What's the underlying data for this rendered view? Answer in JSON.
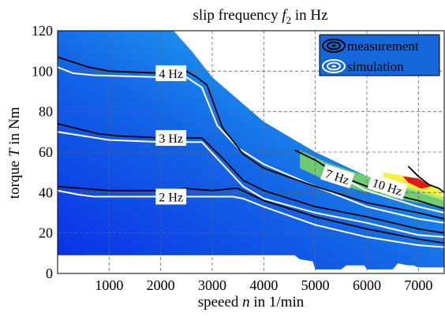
{
  "chart_data": {
    "type": "heatmap",
    "title_prefix": "slip frequency ",
    "title_var": "f",
    "title_sub": "2",
    "title_suffix": " in Hz",
    "xlabel_prefix": "speeed ",
    "xlabel_var": "n",
    "xlabel_suffix": " in 1/min",
    "ylabel_prefix": "torque ",
    "ylabel_var": "T",
    "ylabel_suffix": " in Nm",
    "xlim": [
      0,
      7500
    ],
    "ylim": [
      0,
      120
    ],
    "xticks": [
      1000,
      2000,
      3000,
      4000,
      5000,
      6000,
      7000
    ],
    "yticks": [
      0,
      20,
      40,
      60,
      80,
      100,
      120
    ],
    "grid": true,
    "colors": {
      "low": "#0a2fe6",
      "mid": "#1f9ff0",
      "cyan": "#33d6f0",
      "green": "#8ee64a",
      "yellow": "#f2ef2a",
      "red": "#e21a10",
      "contour_measurement": "#000000",
      "contour_simulation": "#ffffff"
    },
    "legend": {
      "position": "top-right",
      "entries": [
        {
          "label": "measurement",
          "style": "black-contour"
        },
        {
          "label": "simulation",
          "style": "white-contour"
        }
      ]
    },
    "contour_labels": [
      {
        "text": "2 Hz",
        "x": 2200,
        "y": 38
      },
      {
        "text": "3 Hz",
        "x": 2200,
        "y": 67
      },
      {
        "text": "4 Hz",
        "x": 2200,
        "y": 99
      },
      {
        "text": "7 Hz",
        "x": 5430,
        "y": 48
      },
      {
        "text": "10 Hz",
        "x": 6400,
        "y": 43
      }
    ],
    "region_boundary": [
      [
        0,
        120
      ],
      [
        2250,
        120
      ],
      [
        2600,
        110
      ],
      [
        3000,
        97
      ],
      [
        4000,
        75
      ],
      [
        5000,
        60
      ],
      [
        6000,
        48
      ],
      [
        7000,
        40
      ],
      [
        7500,
        36
      ],
      [
        7500,
        3
      ],
      [
        7000,
        3
      ],
      [
        6900,
        4
      ],
      [
        6800,
        4
      ],
      [
        6600,
        5
      ],
      [
        6500,
        2
      ],
      [
        6000,
        2
      ],
      [
        5950,
        4
      ],
      [
        5600,
        4
      ],
      [
        5500,
        2
      ],
      [
        5000,
        2
      ],
      [
        4950,
        6
      ],
      [
        4700,
        7
      ],
      [
        4600,
        9
      ],
      [
        4000,
        9
      ],
      [
        3000,
        9
      ],
      [
        2000,
        9
      ],
      [
        1000,
        9
      ],
      [
        0,
        9
      ]
    ],
    "measurement_contours": [
      {
        "level": "2 Hz",
        "points": [
          [
            0,
            43
          ],
          [
            1000,
            41
          ],
          [
            2000,
            41
          ],
          [
            2500,
            42
          ],
          [
            3000,
            41
          ],
          [
            3400,
            42
          ],
          [
            3500,
            42
          ],
          [
            4000,
            36
          ],
          [
            5000,
            28
          ],
          [
            6000,
            22
          ],
          [
            7000,
            17
          ],
          [
            7500,
            15
          ]
        ]
      },
      {
        "level": "3 Hz",
        "points": [
          [
            0,
            74
          ],
          [
            800,
            69
          ],
          [
            1200,
            68
          ],
          [
            2000,
            67
          ],
          [
            2800,
            67
          ],
          [
            3200,
            57
          ],
          [
            3600,
            46
          ],
          [
            4000,
            41
          ],
          [
            5000,
            33
          ],
          [
            6000,
            28
          ],
          [
            7000,
            22
          ],
          [
            7500,
            20
          ]
        ]
      },
      {
        "level": "4 Hz",
        "points": [
          [
            0,
            107
          ],
          [
            600,
            102
          ],
          [
            1000,
            100
          ],
          [
            2000,
            99
          ],
          [
            2500,
            100
          ],
          [
            2700,
            97
          ],
          [
            2900,
            93
          ],
          [
            3200,
            72
          ],
          [
            3600,
            59
          ],
          [
            4000,
            52
          ],
          [
            5000,
            43
          ],
          [
            6000,
            35
          ],
          [
            7000,
            30
          ],
          [
            7500,
            27
          ]
        ]
      },
      {
        "level": "7 Hz",
        "points": [
          [
            4600,
            61
          ],
          [
            5000,
            56
          ],
          [
            5500,
            48
          ],
          [
            6000,
            43
          ],
          [
            6500,
            39
          ],
          [
            7000,
            36
          ],
          [
            7500,
            32
          ]
        ]
      },
      {
        "level": "10 Hz",
        "points": [
          [
            6800,
            53
          ],
          [
            7000,
            48
          ],
          [
            7200,
            44
          ],
          [
            7400,
            42
          ],
          [
            7500,
            40
          ]
        ]
      }
    ],
    "simulation_contours": [
      {
        "level": "2 Hz",
        "points": [
          [
            0,
            41
          ],
          [
            400,
            39
          ],
          [
            700,
            38
          ],
          [
            2000,
            38
          ],
          [
            3000,
            38
          ],
          [
            3400,
            38
          ],
          [
            3600,
            37
          ],
          [
            4000,
            33
          ],
          [
            5000,
            24
          ],
          [
            6000,
            18
          ],
          [
            7000,
            14
          ],
          [
            7500,
            13
          ]
        ]
      },
      {
        "level": "3 Hz",
        "points": [
          [
            0,
            70
          ],
          [
            500,
            68
          ],
          [
            1000,
            66
          ],
          [
            2000,
            65
          ],
          [
            2800,
            65
          ],
          [
            3200,
            54
          ],
          [
            3600,
            43
          ],
          [
            4000,
            37
          ],
          [
            5000,
            30
          ],
          [
            6000,
            25
          ],
          [
            7000,
            19
          ],
          [
            7500,
            18
          ]
        ]
      },
      {
        "level": "4 Hz",
        "points": [
          [
            0,
            102
          ],
          [
            300,
            99
          ],
          [
            700,
            98
          ],
          [
            2000,
            97
          ],
          [
            2500,
            97
          ],
          [
            2800,
            92
          ],
          [
            3100,
            73
          ],
          [
            3500,
            62
          ],
          [
            4000,
            54
          ],
          [
            5000,
            43
          ],
          [
            6000,
            33
          ],
          [
            7000,
            27
          ],
          [
            7500,
            25
          ]
        ]
      },
      {
        "level": "7 Hz",
        "points": [
          [
            5300,
            50
          ],
          [
            6000,
            41
          ],
          [
            7000,
            33
          ],
          [
            7500,
            30
          ]
        ]
      }
    ]
  }
}
